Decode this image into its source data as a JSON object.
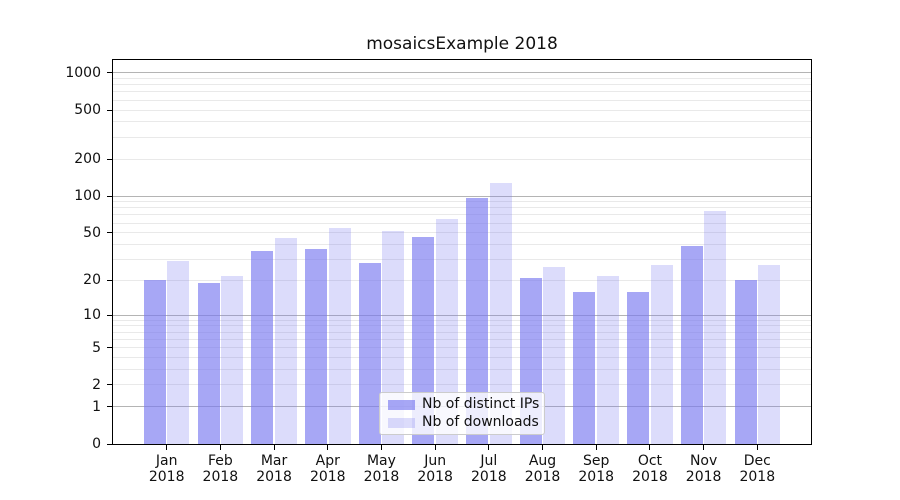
{
  "chart_data": {
    "type": "bar",
    "title": "mosaicsExample 2018",
    "categories": [
      "Jan",
      "Feb",
      "Mar",
      "Apr",
      "May",
      "Jun",
      "Jul",
      "Aug",
      "Sep",
      "Oct",
      "Nov",
      "Dec"
    ],
    "year": "2018",
    "series": [
      {
        "key": "distinct-ips",
        "name": "Nb of distinct IPs",
        "color": "rgba(120,120,240,0.65)",
        "values": [
          20,
          19,
          35,
          37,
          28,
          46,
          97,
          21,
          16,
          16,
          39,
          20
        ]
      },
      {
        "key": "downloads",
        "name": "Nb of downloads",
        "color": "rgba(120,120,240,0.26)",
        "values": [
          29,
          22,
          45,
          55,
          52,
          65,
          128,
          26,
          22,
          27,
          75,
          27
        ]
      }
    ],
    "xlabel": "",
    "ylabel": "",
    "yscale": "log10(1+y)",
    "ylim": [
      0,
      1270
    ],
    "yticks": [
      0,
      1,
      2,
      5,
      10,
      20,
      50,
      100,
      200,
      500,
      1000
    ],
    "major_gridlines": [
      1,
      10,
      100,
      1000
    ],
    "minor_gridlines": [
      2,
      3,
      4,
      5,
      6,
      7,
      8,
      9,
      20,
      30,
      40,
      50,
      60,
      70,
      80,
      90,
      200,
      300,
      400,
      500,
      600,
      700,
      800,
      900
    ],
    "grid_colors": {
      "major": "#b4b4b4",
      "minor": "#e9e9e9"
    },
    "legend": {
      "position": "lower center",
      "labels": [
        "Nb of distinct IPs",
        "Nb of downloads"
      ]
    }
  }
}
